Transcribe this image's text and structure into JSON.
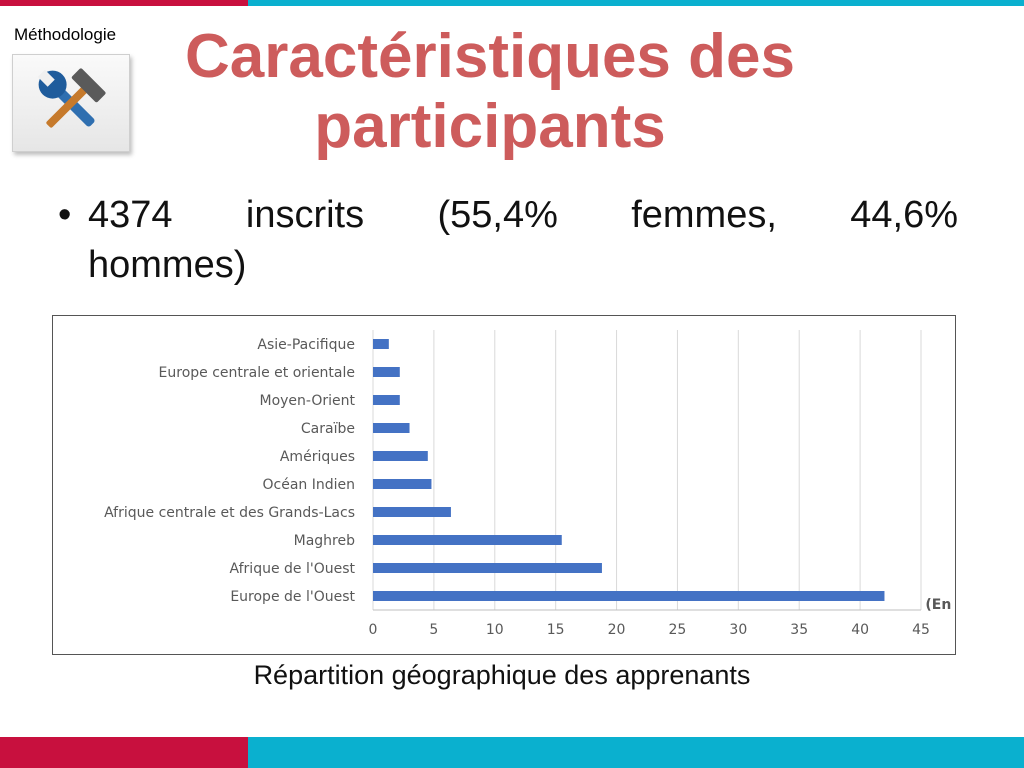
{
  "header": {
    "section_label": "Méthodologie",
    "title_line1": "Caractéristiques des",
    "title_line2": "participants"
  },
  "bullet": {
    "marker": "•",
    "line1": "4374 inscrits (55,4% femmes, 44,6%",
    "line2": "hommes)"
  },
  "caption": "Répartition géographique des apprenants",
  "colors": {
    "accent_red": "#c8103e",
    "accent_blue": "#0ab0cf",
    "title": "#cd5c5c",
    "bar": "#4472c4"
  },
  "icon": {
    "name": "tools-icon"
  },
  "chart_data": {
    "type": "bar",
    "orientation": "horizontal",
    "categories": [
      "Asie-Pacifique",
      "Europe centrale et orientale",
      "Moyen-Orient",
      "Caraïbe",
      "Amériques",
      "Océan Indien",
      "Afrique centrale et des Grands-Lacs",
      "Maghreb",
      "Afrique de l'Ouest",
      "Europe de l'Ouest"
    ],
    "values": [
      1.3,
      2.2,
      2.2,
      3.0,
      4.5,
      4.8,
      6.4,
      15.5,
      18.8,
      42.0
    ],
    "xlabel": "(En %)",
    "xlim": [
      0,
      45
    ],
    "xticks": [
      0,
      5,
      10,
      15,
      20,
      25,
      30,
      35,
      40,
      45
    ],
    "grid": true
  }
}
